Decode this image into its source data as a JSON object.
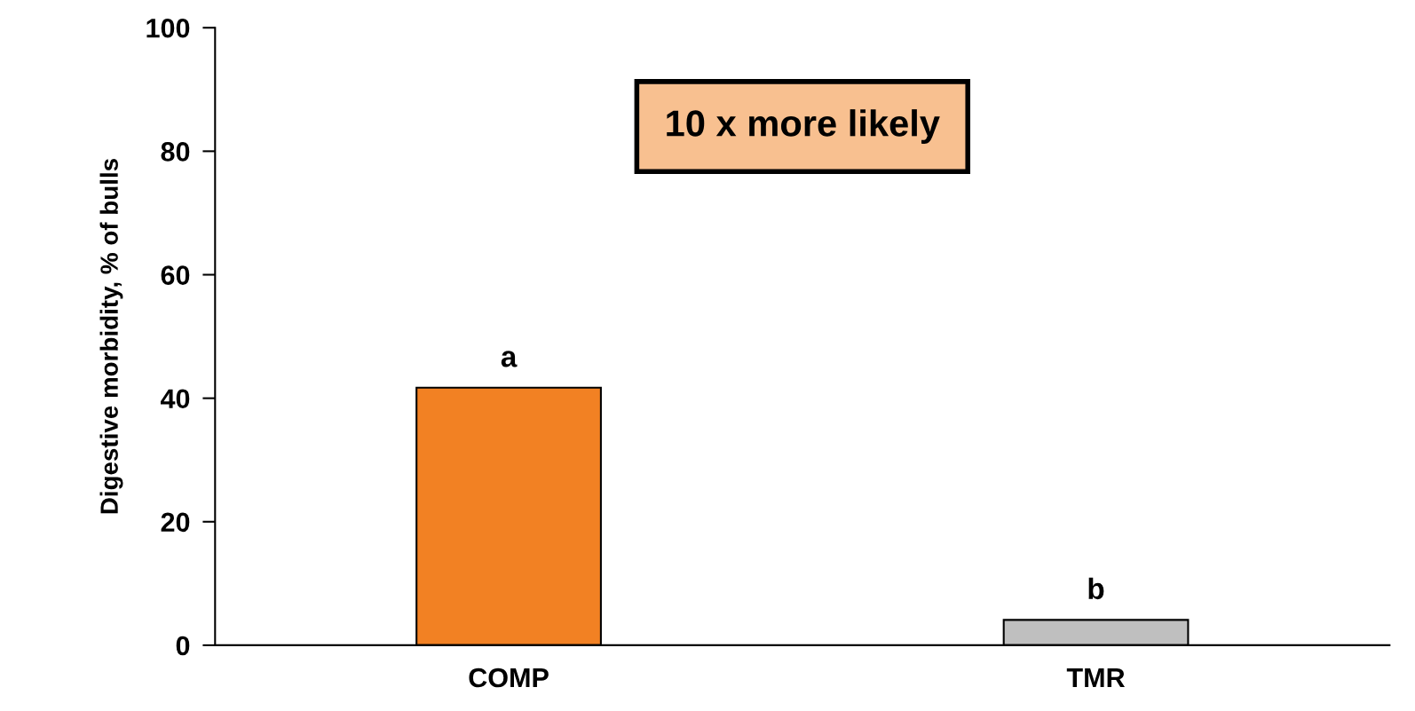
{
  "chart_data": {
    "type": "bar",
    "ylabel": "Digestive morbidity, % of bulls",
    "categories": [
      "COMP",
      "TMR"
    ],
    "values": [
      41.7,
      4.1
    ],
    "colors": [
      "#f28123",
      "#bfbfbf"
    ],
    "ylim": [
      0,
      100
    ],
    "yticks": [
      0,
      20,
      40,
      60,
      80,
      100
    ],
    "grid": false,
    "legend": false,
    "annotations": [
      {
        "text": "a",
        "x": "COMP",
        "y": 41.7
      },
      {
        "text": "b",
        "x": "TMR",
        "y": 4.1
      },
      "10 x more likely"
    ]
  }
}
